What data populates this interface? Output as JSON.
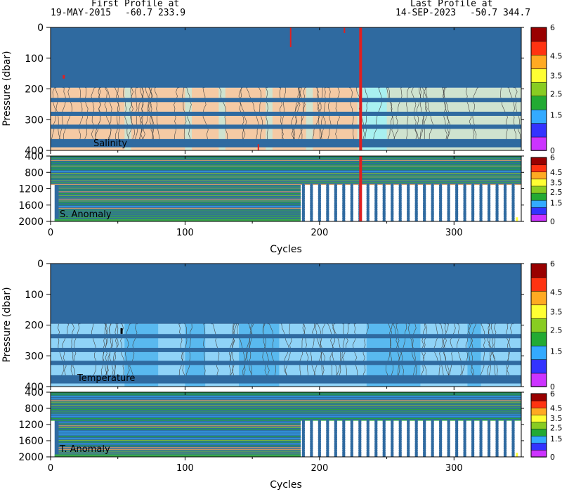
{
  "header": {
    "first_title": "First Profile at",
    "first_date": "19-MAY-2015",
    "first_pos": "-60.7 233.9",
    "last_title": "Last Profile at",
    "last_date": "14-SEP-2023",
    "last_pos": "-50.7 344.7"
  },
  "chart_data": [
    {
      "type": "heatmap",
      "label": "Salinity",
      "ylabel": "Pressure (dbar)",
      "ylim": [
        400,
        0
      ],
      "yticks": [
        "0",
        "100",
        "200",
        "300",
        "400"
      ],
      "xlim": [
        0,
        350
      ],
      "xticks": [
        "0",
        "100",
        "200",
        "300"
      ],
      "colorbar": [
        "0",
        "1.5",
        "2.5",
        "3.5",
        "4.5",
        "6"
      ]
    },
    {
      "type": "heatmap",
      "label": "S. Anomaly",
      "ylim": [
        2000,
        400
      ],
      "yticks": [
        "400",
        "800",
        "1200",
        "1600",
        "2000"
      ],
      "xlim": [
        0,
        350
      ],
      "xticks": [
        "0",
        "100",
        "200",
        "300"
      ],
      "xlabel": "Cycles",
      "colorbar": [
        "0",
        "1.5",
        "2.5",
        "3.5",
        "4.5",
        "6"
      ]
    },
    {
      "type": "heatmap",
      "label": "Temperature",
      "ylabel": "Pressure (dbar)",
      "ylim": [
        400,
        0
      ],
      "yticks": [
        "0",
        "100",
        "200",
        "300",
        "400"
      ],
      "xlim": [
        0,
        350
      ],
      "xticks": [
        "0",
        "100",
        "200",
        "300"
      ],
      "colorbar": [
        "0",
        "1.5",
        "2.5",
        "3.5",
        "4.5",
        "6"
      ]
    },
    {
      "type": "heatmap",
      "label": "T. Anomaly",
      "ylim": [
        2000,
        400
      ],
      "yticks": [
        "400",
        "800",
        "1200",
        "1600",
        "2000"
      ],
      "xlim": [
        0,
        350
      ],
      "xticks": [
        "0",
        "100",
        "200",
        "300"
      ],
      "xlabel": "Cycles",
      "colorbar": [
        "0",
        "1.5",
        "2.5",
        "3.5",
        "4.5",
        "6"
      ]
    }
  ],
  "colors": {
    "profile_blue": "#2f6aa0",
    "sal_fill_orange": "#f8c79e",
    "sal_fill_green": "#cfe3cf",
    "temp_fill_light": "#8fd3f7",
    "temp_fill_mid": "#59b9ef",
    "anom_green": "#3aa84a",
    "flag_red": "#e02020",
    "colorbar": [
      "#cc33ff",
      "#3333ff",
      "#33aaff",
      "#22aa33",
      "#88cc22",
      "#ffff33",
      "#ffaa22",
      "#ff3311",
      "#990000"
    ]
  }
}
